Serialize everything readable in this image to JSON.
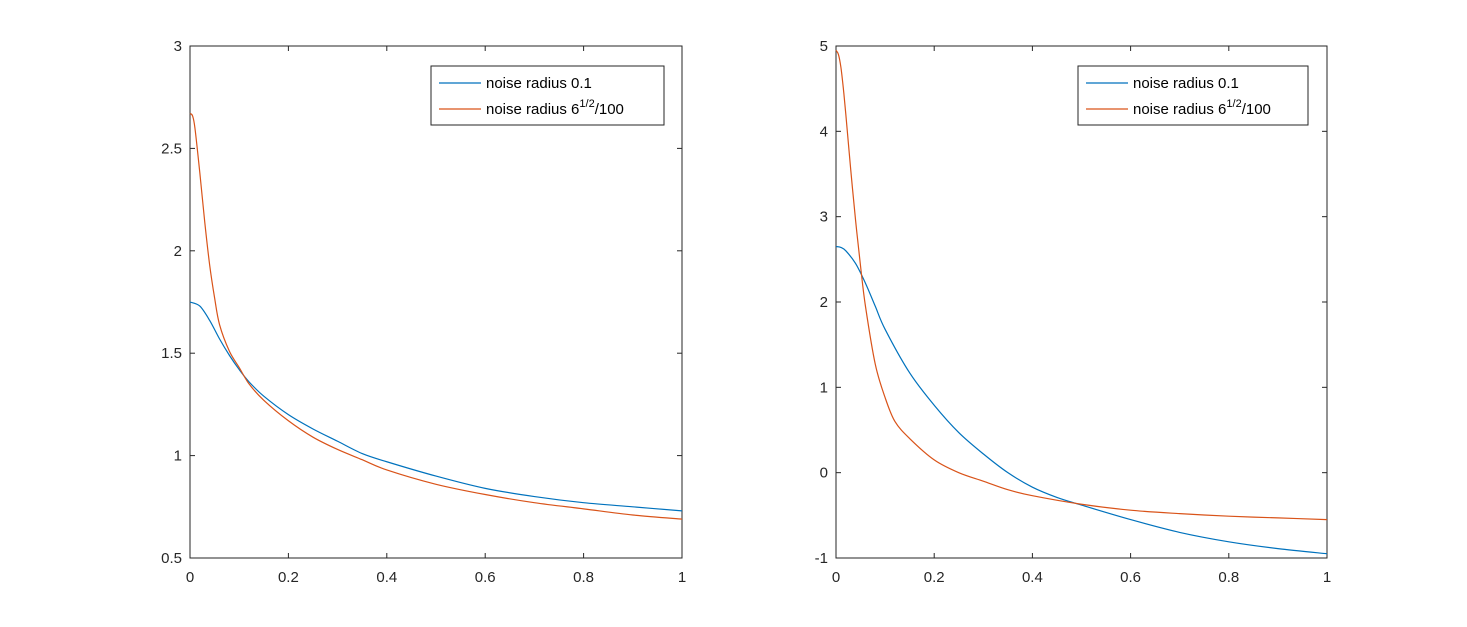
{
  "chart_data": [
    {
      "type": "line",
      "xlim": [
        0,
        1
      ],
      "ylim": [
        0.5,
        3
      ],
      "xticks": [
        0,
        0.2,
        0.4,
        0.6,
        0.8,
        1
      ],
      "xtick_labels": [
        "0",
        "0.2",
        "0.4",
        "0.6",
        "0.8",
        "1"
      ],
      "yticks": [
        0.5,
        1,
        1.5,
        2,
        2.5,
        3
      ],
      "ytick_labels": [
        "0.5",
        "1",
        "1.5",
        "2",
        "2.5",
        "3"
      ],
      "grid": false,
      "legend_position": "top-right",
      "series": [
        {
          "name": "noise radius 0.1",
          "color": "#0072BD",
          "x": [
            0,
            0.02,
            0.04,
            0.06,
            0.08,
            0.1,
            0.12,
            0.15,
            0.2,
            0.25,
            0.3,
            0.35,
            0.4,
            0.5,
            0.6,
            0.7,
            0.8,
            0.9,
            1
          ],
          "y": [
            1.75,
            1.73,
            1.66,
            1.57,
            1.49,
            1.42,
            1.36,
            1.29,
            1.2,
            1.13,
            1.07,
            1.01,
            0.97,
            0.9,
            0.84,
            0.8,
            0.77,
            0.75,
            0.73
          ]
        },
        {
          "name_prefix": "noise radius 6",
          "name_sup": "1/2",
          "name_suffix": "/100",
          "color": "#D95319",
          "x": [
            0,
            0.005,
            0.01,
            0.02,
            0.03,
            0.04,
            0.05,
            0.06,
            0.08,
            0.1,
            0.12,
            0.15,
            0.2,
            0.25,
            0.3,
            0.35,
            0.4,
            0.5,
            0.6,
            0.7,
            0.8,
            0.9,
            1
          ],
          "y": [
            2.67,
            2.66,
            2.6,
            2.38,
            2.14,
            1.93,
            1.77,
            1.64,
            1.51,
            1.43,
            1.35,
            1.27,
            1.17,
            1.09,
            1.03,
            0.98,
            0.93,
            0.86,
            0.81,
            0.77,
            0.74,
            0.71,
            0.69
          ]
        }
      ]
    },
    {
      "type": "line",
      "xlim": [
        0,
        1
      ],
      "ylim": [
        -1,
        5
      ],
      "xticks": [
        0,
        0.2,
        0.4,
        0.6,
        0.8,
        1
      ],
      "xtick_labels": [
        "0",
        "0.2",
        "0.4",
        "0.6",
        "0.8",
        "1"
      ],
      "yticks": [
        -1,
        0,
        1,
        2,
        3,
        4,
        5
      ],
      "ytick_labels": [
        "-1",
        "0",
        "1",
        "2",
        "3",
        "4",
        "5"
      ],
      "grid": false,
      "legend_position": "top-right",
      "series": [
        {
          "name": "noise radius 0.1",
          "color": "#0072BD",
          "x": [
            0,
            0.01,
            0.02,
            0.04,
            0.06,
            0.08,
            0.1,
            0.15,
            0.2,
            0.25,
            0.3,
            0.35,
            0.4,
            0.45,
            0.5,
            0.6,
            0.7,
            0.8,
            0.9,
            1
          ],
          "y": [
            2.65,
            2.64,
            2.6,
            2.45,
            2.22,
            1.95,
            1.68,
            1.17,
            0.79,
            0.47,
            0.22,
            0.0,
            -0.17,
            -0.29,
            -0.38,
            -0.55,
            -0.7,
            -0.81,
            -0.89,
            -0.95
          ]
        },
        {
          "name_prefix": "noise radius 6",
          "name_sup": "1/2",
          "name_suffix": "/100",
          "color": "#D95319",
          "x": [
            0,
            0.005,
            0.01,
            0.015,
            0.02,
            0.03,
            0.04,
            0.05,
            0.06,
            0.08,
            0.1,
            0.12,
            0.15,
            0.2,
            0.25,
            0.3,
            0.35,
            0.4,
            0.5,
            0.6,
            0.7,
            0.8,
            0.9,
            1
          ],
          "y": [
            4.95,
            4.9,
            4.75,
            4.5,
            4.2,
            3.55,
            2.95,
            2.42,
            1.95,
            1.27,
            0.88,
            0.6,
            0.4,
            0.15,
            0.0,
            -0.1,
            -0.2,
            -0.27,
            -0.37,
            -0.44,
            -0.48,
            -0.51,
            -0.53,
            -0.55
          ]
        }
      ]
    }
  ]
}
